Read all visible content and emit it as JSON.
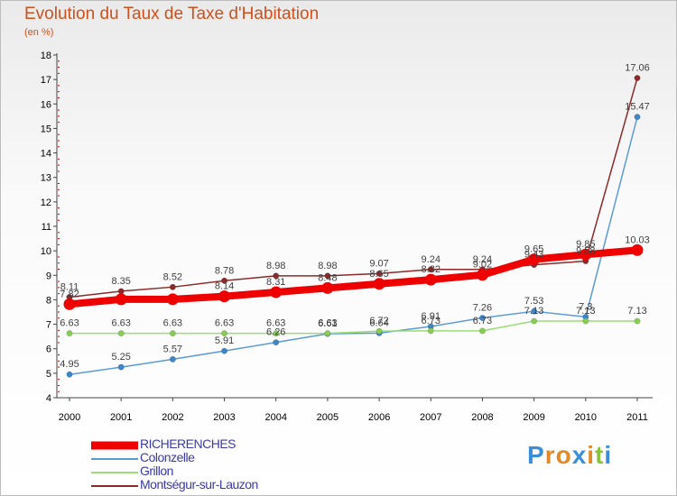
{
  "chart_data": {
    "type": "line",
    "title": "Evolution du Taux de Taxe d'Habitation",
    "subtitle": "(en %)",
    "xlabel": "",
    "ylabel": "",
    "categories": [
      "2000",
      "2001",
      "2002",
      "2003",
      "2004",
      "2005",
      "2006",
      "2007",
      "2008",
      "2009",
      "2010",
      "2011"
    ],
    "ylim": [
      4,
      18
    ],
    "yticks": [
      "4",
      "5",
      "6",
      "7",
      "8",
      "9",
      "10",
      "11",
      "12",
      "13",
      "14",
      "15",
      "16",
      "17",
      "18"
    ],
    "series": [
      {
        "name": "RICHERENCHES",
        "color": "#ee0000",
        "width": 8,
        "values": [
          7.82,
          8.02,
          8.02,
          8.14,
          8.31,
          8.48,
          8.65,
          8.82,
          9.02,
          9.65,
          9.85,
          10.03
        ],
        "labels": [
          "7.82",
          "",
          "",
          "8.14",
          "8.31",
          "8.48",
          "8.65",
          "8.82",
          "9.02",
          "9.65",
          "9.85",
          "10.03"
        ]
      },
      {
        "name": "Colonzelle",
        "color": "#5b9bd5",
        "width": 1.5,
        "values": [
          4.95,
          5.25,
          5.57,
          5.91,
          6.26,
          6.61,
          6.64,
          6.91,
          7.26,
          7.53,
          7.3,
          15.47
        ],
        "labels": [
          "4.95",
          "5.25",
          "5.57",
          "5.91",
          "6.26",
          "6.61",
          "6.64",
          "6.91",
          "7.26",
          "7.53",
          "7.3",
          "15.47"
        ]
      },
      {
        "name": "Grillon",
        "color": "#99dd77",
        "width": 1.5,
        "values": [
          6.63,
          6.63,
          6.63,
          6.63,
          6.63,
          6.63,
          6.72,
          6.73,
          6.73,
          7.13,
          7.13,
          7.13
        ],
        "labels": [
          "6.63",
          "6.63",
          "6.63",
          "6.63",
          "6.63",
          "6.63",
          "6.72",
          "6.73",
          "6.73",
          "7.13",
          "7.13",
          "7.13"
        ]
      },
      {
        "name": "Montségur-sur-Lauzon",
        "color": "#8b2a2a",
        "width": 1.5,
        "values": [
          8.11,
          8.35,
          8.52,
          8.78,
          8.98,
          8.98,
          9.07,
          9.24,
          9.24,
          9.43,
          9.58,
          17.06
        ],
        "labels": [
          "8.11",
          "8.35",
          "8.52",
          "8.78",
          "8.98",
          "8.98",
          "9.07",
          "9.24",
          "9.24",
          "9.43",
          "9.58",
          "17.06"
        ]
      }
    ]
  },
  "legend": {
    "items": [
      {
        "label": "RICHERENCHES",
        "color": "#ee0000"
      },
      {
        "label": "Colonzelle",
        "color": "#5b9bd5"
      },
      {
        "label": "Grillon",
        "color": "#99dd77"
      },
      {
        "label": "Montségur-sur-Lauzon",
        "color": "#8b2a2a"
      }
    ]
  },
  "logo": {
    "letters": [
      "P",
      "r",
      "o",
      "x",
      "i",
      "t",
      "i"
    ],
    "colors": [
      "#3a8fd8",
      "#e08a2a",
      "#e08a2a",
      "#3a8fd8",
      "#e08a2a",
      "#8ac43f",
      "#3a8fd8"
    ]
  }
}
